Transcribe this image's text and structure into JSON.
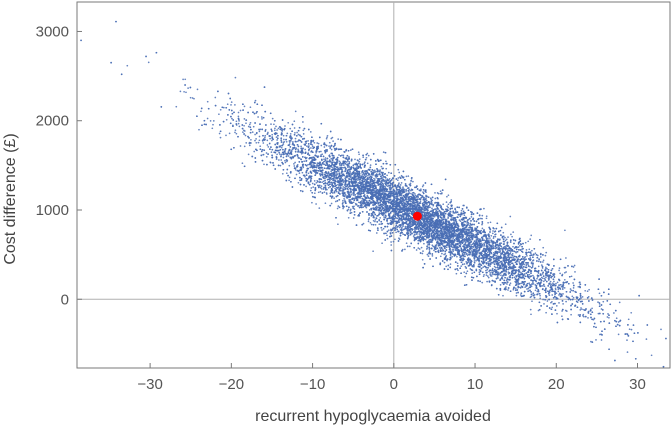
{
  "chart_data": {
    "type": "scatter",
    "title": "",
    "xlabel": "recurrent hypoglycaemia avoided",
    "ylabel": "Cost difference (£)",
    "xlim": [
      -39,
      34
    ],
    "ylim": [
      -770,
      3330
    ],
    "xticks": [
      -30,
      -20,
      -10,
      0,
      10,
      20,
      30
    ],
    "yticks": [
      0,
      1000,
      2000,
      3000
    ],
    "xtick_labels": [
      "−30",
      "−20",
      "−10",
      "0",
      "10",
      "20",
      "30"
    ],
    "ytick_labels": [
      "0",
      "1000",
      "2000",
      "3000"
    ],
    "grid": false,
    "reference_lines": {
      "x": 0,
      "y": 0
    },
    "series": [
      {
        "kind": "simulation cloud",
        "approx_points": 10000,
        "x_mean": 2.9,
        "x_sd": 9.5,
        "y_mean": 930,
        "y_sd": 470,
        "correlation": -0.94,
        "color": "#4a6fb5"
      },
      {
        "kind": "point estimate",
        "x": 2.9,
        "y": 930,
        "color": "#ff0000"
      }
    ],
    "outliers": [
      {
        "x": -38.5,
        "y": 2900
      },
      {
        "x": -34.2,
        "y": 3110
      },
      {
        "x": -34.8,
        "y": 2650
      },
      {
        "x": -33.5,
        "y": 2520
      },
      {
        "x": -30.5,
        "y": 2720
      },
      {
        "x": 28.5,
        "y": -390
      },
      {
        "x": 30.2,
        "y": 40
      },
      {
        "x": 33.5,
        "y": -440
      },
      {
        "x": 26.5,
        "y": -560
      },
      {
        "x": 29.5,
        "y": -290
      }
    ]
  }
}
